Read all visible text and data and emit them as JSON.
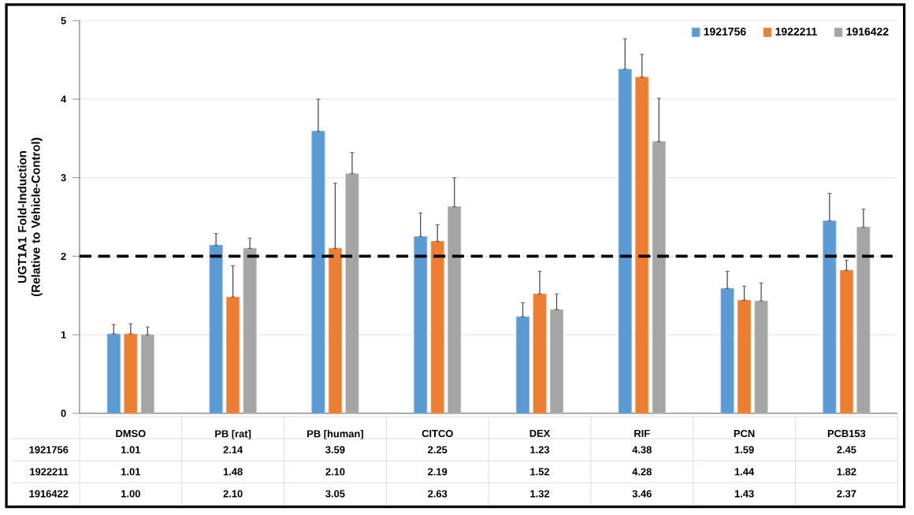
{
  "chart_data": {
    "type": "bar",
    "ylabel": "UGT1A1 Fold-Induction (Relative to Vehicle-Control)",
    "categories": [
      "DMSO",
      "PB [rat]",
      "PB [human]",
      "CITCO",
      "DEX",
      "RIF",
      "PCN",
      "PCB153"
    ],
    "series": [
      {
        "name": "1921756",
        "color": "#5b9bd5",
        "values": [
          1.01,
          2.14,
          3.59,
          2.25,
          1.23,
          4.38,
          1.59,
          2.45
        ],
        "value_labels": [
          "1.01",
          "2.14",
          "3.59",
          "2.25",
          "1.23",
          "4.38",
          "1.59",
          "2.45"
        ],
        "errors": [
          [
            1.01,
            1.13
          ],
          [
            2.14,
            2.29
          ],
          [
            3.59,
            4.0
          ],
          [
            2.25,
            2.55
          ],
          [
            1.23,
            1.41
          ],
          [
            4.38,
            4.77
          ],
          [
            1.59,
            1.81
          ],
          [
            2.45,
            2.8
          ]
        ]
      },
      {
        "name": "1922211",
        "color": "#ed7d31",
        "values": [
          1.01,
          1.48,
          2.1,
          2.19,
          1.52,
          4.28,
          1.44,
          1.82
        ],
        "value_labels": [
          "1.01",
          "1.48",
          "2.10",
          "2.19",
          "1.52",
          "4.28",
          "1.44",
          "1.82"
        ],
        "errors": [
          [
            1.01,
            1.14
          ],
          [
            1.48,
            1.88
          ],
          [
            2.1,
            2.93
          ],
          [
            2.19,
            2.4
          ],
          [
            1.52,
            1.81
          ],
          [
            4.28,
            4.57
          ],
          [
            1.44,
            1.62
          ],
          [
            1.82,
            1.95
          ]
        ]
      },
      {
        "name": "1916422",
        "color": "#a5a5a5",
        "values": [
          1.0,
          2.1,
          3.05,
          2.63,
          1.32,
          3.46,
          1.43,
          2.37
        ],
        "value_labels": [
          "1.00",
          "2.10",
          "3.05",
          "2.63",
          "1.32",
          "3.46",
          "1.43",
          "2.37"
        ],
        "errors": [
          [
            1.0,
            1.1
          ],
          [
            2.1,
            2.23
          ],
          [
            3.05,
            3.32
          ],
          [
            2.63,
            3.0
          ],
          [
            1.32,
            1.52
          ],
          [
            3.46,
            4.01
          ],
          [
            1.43,
            1.66
          ],
          [
            2.37,
            2.6
          ]
        ]
      }
    ],
    "ylim": [
      0,
      5
    ],
    "yticks": [
      0,
      1,
      2,
      3,
      4,
      5
    ],
    "grid": "y",
    "legend": "top right",
    "ref_lines": [
      {
        "axis": "y",
        "value": 2,
        "color": "#000000",
        "line_style": "dashed"
      }
    ]
  }
}
